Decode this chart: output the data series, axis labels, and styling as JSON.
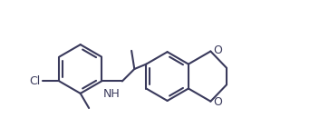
{
  "bg_color": "#ffffff",
  "bond_color": "#3a3a5c",
  "label_color": "#3a3a5c",
  "lw": 1.5,
  "fs": 9.0,
  "figsize": [
    3.63,
    1.52
  ],
  "dpi": 100,
  "xlim": [
    -1.0,
    11.5
  ],
  "ylim": [
    -0.8,
    4.8
  ]
}
